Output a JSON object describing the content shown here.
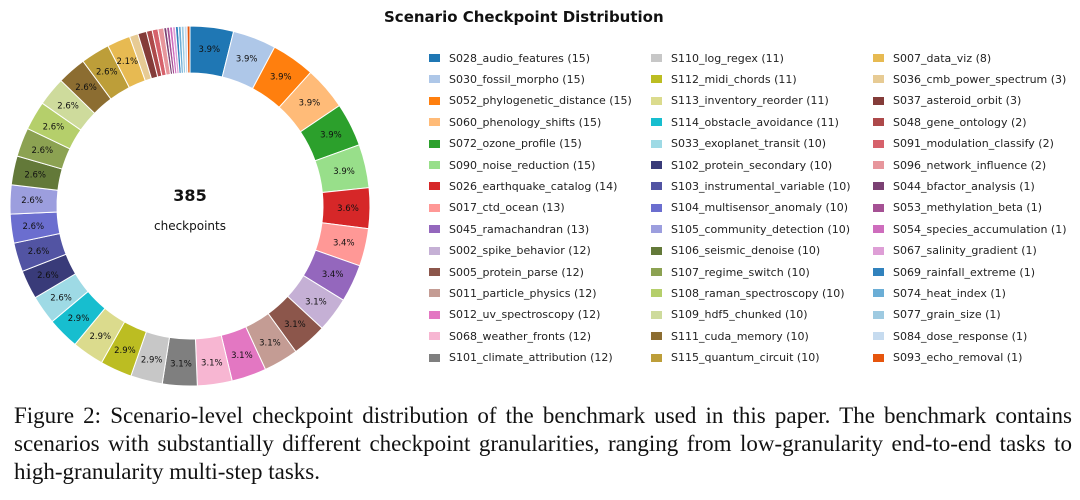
{
  "chart_data": {
    "type": "pie",
    "style": "donut",
    "title": "Scenario Checkpoint Distribution",
    "center_total": "385",
    "center_label": "checkpoints",
    "labels": [
      "S028_audio_features",
      "S030_fossil_morpho",
      "S052_phylogenetic_distance",
      "S060_phenology_shifts",
      "S072_ozone_profile",
      "S090_noise_reduction",
      "S026_earthquake_catalog",
      "S017_ctd_ocean",
      "S045_ramachandran",
      "S002_spike_behavior",
      "S005_protein_parse",
      "S011_particle_physics",
      "S012_uv_spectroscopy",
      "S068_weather_fronts",
      "S101_climate_attribution",
      "S110_log_regex",
      "S112_midi_chords",
      "S113_inventory_reorder",
      "S114_obstacle_avoidance",
      "S033_exoplanet_transit",
      "S102_protein_secondary",
      "S103_instrumental_variable",
      "S104_multisensor_anomaly",
      "S105_community_detection",
      "S106_seismic_denoise",
      "S107_regime_switch",
      "S108_raman_spectroscopy",
      "S109_hdf5_chunked",
      "S111_cuda_memory",
      "S115_quantum_circuit",
      "S007_data_viz",
      "S036_cmb_power_spectrum",
      "S037_asteroid_orbit",
      "S048_gene_ontology",
      "S091_modulation_classify",
      "S096_network_influence",
      "S044_bfactor_analysis",
      "S053_methylation_beta",
      "S054_species_accumulation",
      "S067_salinity_gradient",
      "S069_rainfall_extreme",
      "S074_heat_index",
      "S077_grain_size",
      "S084_dose_response",
      "S093_echo_removal"
    ],
    "values": [
      15,
      15,
      15,
      15,
      15,
      15,
      14,
      13,
      13,
      12,
      12,
      12,
      12,
      12,
      12,
      11,
      11,
      11,
      11,
      10,
      10,
      10,
      10,
      10,
      10,
      10,
      10,
      10,
      10,
      10,
      8,
      3,
      3,
      2,
      2,
      2,
      1,
      1,
      1,
      1,
      1,
      1,
      1,
      1,
      1
    ],
    "slice_labels": [
      "3.9%",
      "3.9%",
      "3.9%",
      "3.9%",
      "3.9%",
      "3.9%",
      "3.6%",
      "3.4%",
      "3.4%",
      "3.1%",
      "3.1%",
      "3.1%",
      "3.1%",
      "3.1%",
      "3.1%",
      "2.9%",
      "2.9%",
      "2.9%",
      "2.9%",
      "2.6%",
      "2.6%",
      "2.6%",
      "2.6%",
      "2.6%",
      "2.6%",
      "2.6%",
      "2.6%",
      "2.6%",
      "2.6%",
      "2.6%",
      "2.1%",
      "",
      "",
      "",
      "",
      "",
      "",
      "",
      "",
      "",
      "",
      "",
      "",
      "",
      ""
    ],
    "legend_labels": [
      "S028_audio_features (15)",
      "S030_fossil_morpho (15)",
      "S052_phylogenetic_distance (15)",
      "S060_phenology_shifts (15)",
      "S072_ozone_profile (15)",
      "S090_noise_reduction (15)",
      "S026_earthquake_catalog (14)",
      "S017_ctd_ocean (13)",
      "S045_ramachandran (13)",
      "S002_spike_behavior (12)",
      "S005_protein_parse (12)",
      "S011_particle_physics (12)",
      "S012_uv_spectroscopy (12)",
      "S068_weather_fronts (12)",
      "S101_climate_attribution (12)",
      "S110_log_regex (11)",
      "S112_midi_chords (11)",
      "S113_inventory_reorder (11)",
      "S114_obstacle_avoidance (11)",
      "S033_exoplanet_transit (10)",
      "S102_protein_secondary (10)",
      "S103_instrumental_variable (10)",
      "S104_multisensor_anomaly (10)",
      "S105_community_detection (10)",
      "S106_seismic_denoise (10)",
      "S107_regime_switch (10)",
      "S108_raman_spectroscopy (10)",
      "S109_hdf5_chunked (10)",
      "S111_cuda_memory (10)",
      "S115_quantum_circuit (10)",
      "S007_data_viz (8)",
      "S036_cmb_power_spectrum (3)",
      "S037_asteroid_orbit (3)",
      "S048_gene_ontology (2)",
      "S091_modulation_classify (2)",
      "S096_network_influence (2)",
      "S044_bfactor_analysis (1)",
      "S053_methylation_beta (1)",
      "S054_species_accumulation (1)",
      "S067_salinity_gradient (1)",
      "S069_rainfall_extreme (1)",
      "S074_heat_index (1)",
      "S077_grain_size (1)",
      "S084_dose_response (1)",
      "S093_echo_removal (1)"
    ],
    "colors": [
      "#1f77b4",
      "#aec7e8",
      "#ff7f0e",
      "#ffbb78",
      "#2ca02c",
      "#98df8a",
      "#d62728",
      "#ff9896",
      "#9467bd",
      "#c5b0d5",
      "#8c564b",
      "#c49c94",
      "#e377c2",
      "#f7b6d2",
      "#7f7f7f",
      "#c7c7c7",
      "#bcbd22",
      "#dbdb8d",
      "#17becf",
      "#9edae5",
      "#393b79",
      "#5254a3",
      "#6b6ecf",
      "#9c9ede",
      "#637939",
      "#8ca252",
      "#b5cf6b",
      "#cedb9c",
      "#8c6d31",
      "#bd9e39",
      "#e7ba52",
      "#e7cb94",
      "#843c39",
      "#ad494a",
      "#d6616b",
      "#e7969c",
      "#7b4173",
      "#a55194",
      "#ce6dbd",
      "#de9ed6",
      "#3182bd",
      "#6baed6",
      "#9ecae1",
      "#c6dbef",
      "#e6550d"
    ],
    "start_angle_deg": 90,
    "direction": "clockwise",
    "legend_placement": "right"
  },
  "caption": "Figure 2: Scenario-level checkpoint distribution of the benchmark used in this paper. The benchmark contains scenarios with substantially different checkpoint granularities, ranging from low-granularity end-to-end tasks to high-granularity multi-step tasks."
}
